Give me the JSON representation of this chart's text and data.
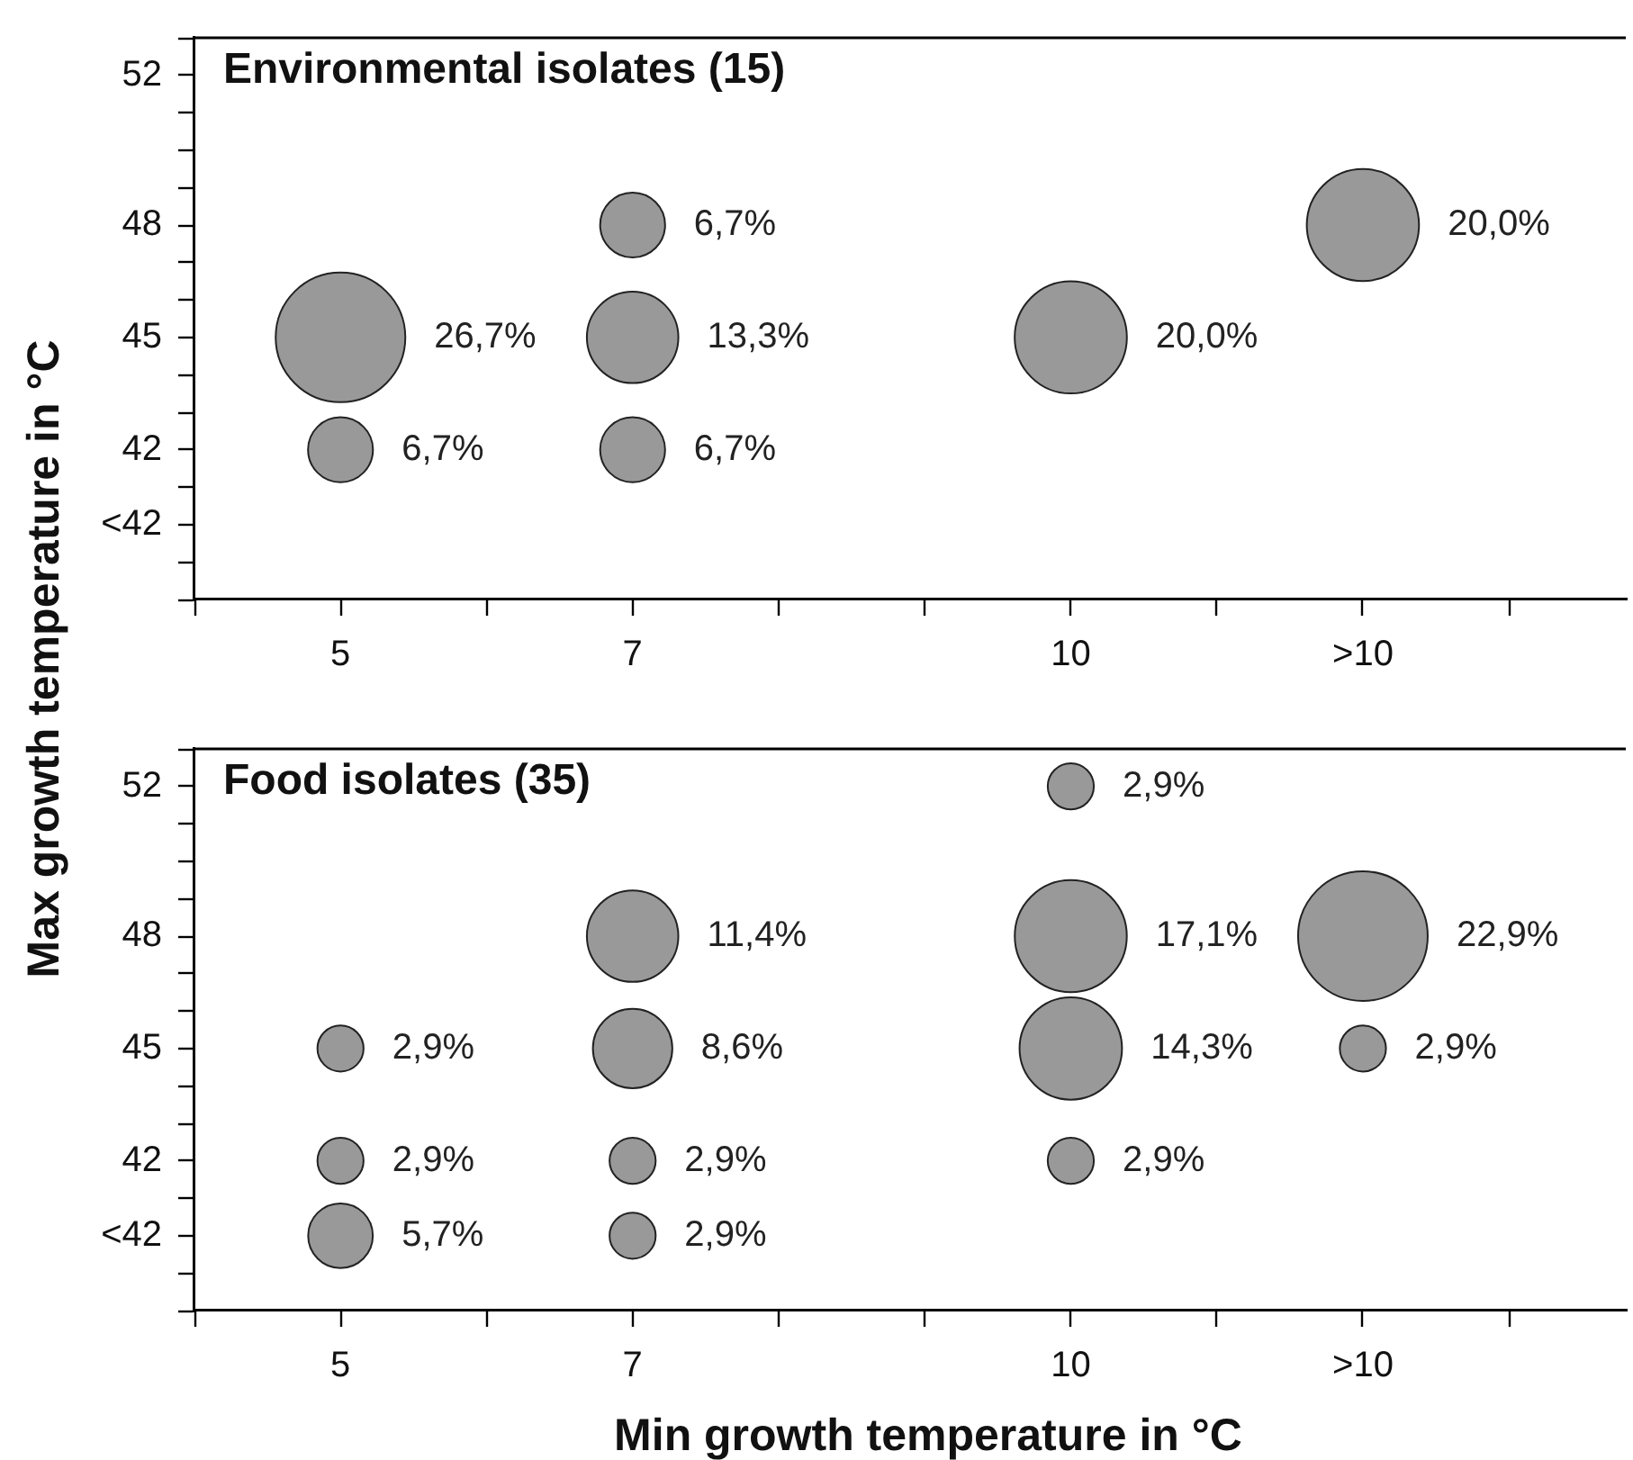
{
  "chart_data": [
    {
      "type": "bubble",
      "title": "Environmental isolates (15)",
      "ylabel": "Max growth temperature in °C",
      "x": [
        5,
        5,
        7,
        7,
        7,
        10,
        12
      ],
      "values": [
        45,
        42,
        48,
        45,
        42,
        45,
        48
      ],
      "sizes": [
        26.7,
        6.7,
        6.7,
        13.3,
        6.7,
        20.0,
        20.0
      ],
      "value_labels": [
        "26,7%",
        "6,7%",
        "6,7%",
        "13,3%",
        "6,7%",
        "20,0%",
        "20,0%"
      ],
      "color": "#999999",
      "xlim": [
        4,
        13.8
      ],
      "xticks": [
        {
          "value": 4,
          "label": null
        },
        5,
        {
          "value": 6,
          "label": null
        },
        7,
        {
          "value": 8,
          "label": null
        },
        {
          "value": 9,
          "label": null
        },
        10,
        {
          "value": 11,
          "label": null
        },
        {
          "value": 12,
          "label": ">10"
        },
        {
          "value": 13,
          "label": null
        }
      ],
      "ylim": [
        38,
        53
      ],
      "yticks": [
        {
          "value": 38,
          "label": null
        },
        {
          "value": 39,
          "label": null
        },
        {
          "value": 40,
          "label": "<42"
        },
        {
          "value": 41,
          "label": null
        },
        42,
        {
          "value": 43,
          "label": null
        },
        {
          "value": 44,
          "label": null
        },
        45,
        {
          "value": 46,
          "label": null
        },
        {
          "value": 47,
          "label": null
        },
        48,
        {
          "value": 49,
          "label": null
        },
        {
          "value": 50,
          "label": null
        },
        {
          "value": 51,
          "label": null
        },
        52,
        {
          "value": 53,
          "label": null
        }
      ]
    },
    {
      "type": "bubble",
      "title": "Food isolates (35)",
      "xlabel": "Min growth temperature in °C",
      "x": [
        10,
        7,
        10,
        12,
        5,
        7,
        10,
        12,
        5,
        7,
        10,
        5,
        7
      ],
      "values": [
        52,
        48,
        48,
        48,
        45,
        45,
        45,
        45,
        42,
        42,
        42,
        40,
        40
      ],
      "sizes": [
        2.9,
        11.4,
        17.1,
        22.9,
        2.9,
        8.6,
        14.3,
        2.9,
        2.9,
        2.9,
        2.9,
        5.7,
        2.9
      ],
      "value_labels": [
        "2,9%",
        "11,4%",
        "17,1%",
        "22,9%",
        "2,9%",
        "8,6%",
        "14,3%",
        "2,9%",
        "2,9%",
        "2,9%",
        "2,9%",
        "5,7%",
        "2,9%"
      ],
      "color": "#999999",
      "xlim": [
        4,
        13.8
      ],
      "xticks": [
        {
          "value": 4,
          "label": null
        },
        5,
        {
          "value": 6,
          "label": null
        },
        7,
        {
          "value": 8,
          "label": null
        },
        {
          "value": 9,
          "label": null
        },
        10,
        {
          "value": 11,
          "label": null
        },
        {
          "value": 12,
          "label": ">10"
        },
        {
          "value": 13,
          "label": null
        }
      ],
      "ylim": [
        38,
        53
      ],
      "yticks": [
        {
          "value": 38,
          "label": null
        },
        {
          "value": 39,
          "label": null
        },
        {
          "value": 40,
          "label": "<42"
        },
        {
          "value": 41,
          "label": null
        },
        42,
        {
          "value": 43,
          "label": null
        },
        {
          "value": 44,
          "label": null
        },
        45,
        {
          "value": 46,
          "label": null
        },
        {
          "value": 47,
          "label": null
        },
        48,
        {
          "value": 49,
          "label": null
        },
        {
          "value": 50,
          "label": null
        },
        {
          "value": 51,
          "label": null
        },
        52,
        {
          "value": 53,
          "label": null
        }
      ]
    }
  ]
}
